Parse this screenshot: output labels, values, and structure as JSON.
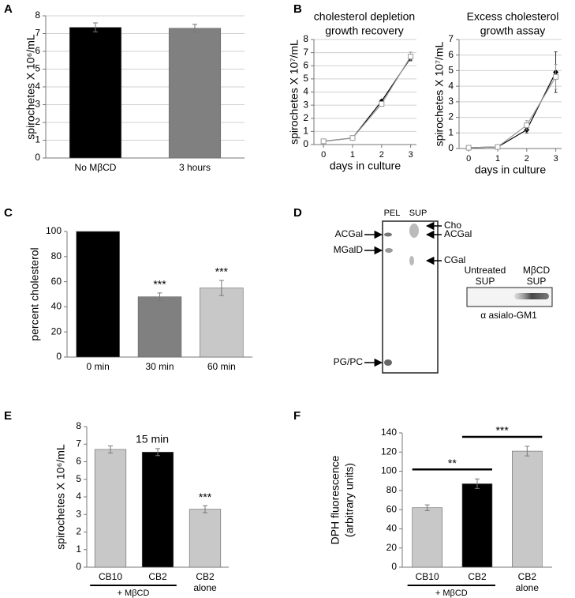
{
  "panel_labels": [
    "A",
    "B",
    "C",
    "D",
    "E",
    "F"
  ],
  "chart_data": [
    {
      "type": "bar",
      "ylabel": "spirochetes X 10⁶/mL",
      "categories": [
        "No MβCD",
        "3 hours"
      ],
      "values": [
        7.35,
        7.3
      ],
      "errors": [
        0.25,
        0.22
      ],
      "colors": [
        "#000000",
        "#808080"
      ],
      "ylim": [
        0,
        8
      ],
      "yticks": [
        0,
        1,
        2,
        3,
        4,
        5,
        6,
        7,
        8
      ],
      "grid": true
    },
    {
      "type": "line",
      "title": [
        "cholesterol depletion",
        "growth recovery"
      ],
      "ylabel": "spirochetes X 10⁷/mL",
      "xlabel": "days in culture",
      "x": [
        0,
        1,
        2,
        3
      ],
      "xlim": [
        -0.33,
        3.2
      ],
      "xticks": [
        0,
        1,
        2,
        3
      ],
      "ylim": [
        0,
        8
      ],
      "yticks": [
        0,
        1,
        2,
        3,
        4,
        5,
        6,
        7,
        8
      ],
      "grid": true,
      "series": [
        {
          "color": "#000000",
          "marker": "diamond",
          "values": [
            0.25,
            0.5,
            3.3,
            6.6
          ],
          "errors": [
            0.05,
            0.05,
            0.1,
            0.2
          ]
        },
        {
          "color": "#999999",
          "marker": "square",
          "values": [
            0.25,
            0.5,
            3.1,
            6.7
          ],
          "errors": [
            0.05,
            0.05,
            0.15,
            0.35
          ]
        }
      ]
    },
    {
      "type": "line",
      "title": [
        "Excess cholesterol",
        "growth assay"
      ],
      "ylabel": "spirochetes X 10⁷/mL",
      "xlabel": "days in culture",
      "x": [
        0,
        1,
        2,
        3
      ],
      "xlim": [
        -0.33,
        3.2
      ],
      "xticks": [
        0,
        1,
        2,
        3
      ],
      "ylim": [
        0,
        7
      ],
      "yticks": [
        0,
        1,
        2,
        3,
        4,
        5,
        6,
        7
      ],
      "grid": true,
      "series": [
        {
          "color": "#000000",
          "marker": "diamond",
          "values": [
            0.05,
            0.1,
            1.2,
            4.9
          ],
          "errors": [
            0.1,
            0.1,
            0.2,
            1.3
          ]
        },
        {
          "color": "#999999",
          "marker": "square",
          "values": [
            0.05,
            0.1,
            1.5,
            4.6
          ],
          "errors": [
            0.15,
            0.1,
            0.3,
            0.8
          ]
        }
      ]
    },
    {
      "type": "bar",
      "ylabel": "percent cholesterol",
      "categories": [
        "0 min",
        "30 min",
        "60 min"
      ],
      "values": [
        100,
        48,
        55
      ],
      "errors": [
        0,
        3,
        6
      ],
      "significance": [
        null,
        "***",
        "***"
      ],
      "colors": [
        "#000000",
        "#808080",
        "#c8c8c8"
      ],
      "ylim": [
        0,
        100
      ],
      "yticks": [
        0,
        20,
        40,
        60,
        80,
        100
      ],
      "grid": false
    },
    {
      "type": "bar",
      "title": "15 min",
      "ylabel": "spirochetes X 10⁶/mL",
      "categories": [
        "CB10",
        "CB2",
        "CB2"
      ],
      "category_notes": [
        null,
        null,
        "alone"
      ],
      "group_label": "+ MβCD",
      "values": [
        6.7,
        6.55,
        3.3
      ],
      "errors": [
        0.2,
        0.2,
        0.2
      ],
      "significance": [
        null,
        null,
        "***"
      ],
      "colors": [
        "#c8c8c8",
        "#000000",
        "#c8c8c8"
      ],
      "ylim": [
        0,
        8
      ],
      "yticks": [
        0,
        1,
        2,
        3,
        4,
        5,
        6,
        7,
        8
      ],
      "grid": false
    },
    {
      "type": "bar",
      "ylabel": [
        "DPH fluorescence",
        "(arbitrary units)"
      ],
      "categories": [
        "CB10",
        "CB2",
        "CB2"
      ],
      "category_notes": [
        null,
        null,
        "alone"
      ],
      "group_label": "+ MβCD",
      "values": [
        62,
        87,
        121
      ],
      "errors": [
        3,
        5,
        5
      ],
      "brackets": [
        {
          "between": [
            0,
            1
          ],
          "label": "**"
        },
        {
          "between": [
            1,
            2
          ],
          "label": "***"
        }
      ],
      "colors": [
        "#c8c8c8",
        "#000000",
        "#c8c8c8"
      ],
      "ylim": [
        0,
        140
      ],
      "yticks": [
        0,
        20,
        40,
        60,
        80,
        100,
        120,
        140
      ],
      "grid": false
    }
  ],
  "gel": {
    "lanes": [
      "PEL",
      "SUP"
    ],
    "left_labels": [
      "ACGal",
      "MGalD",
      "PG/PC"
    ],
    "right_labels": [
      "Cho",
      "ACGal",
      "CGal"
    ]
  },
  "blot": {
    "lanes": [
      [
        "Untreated",
        "SUP"
      ],
      [
        "MβCD",
        "SUP"
      ]
    ],
    "caption": "α asialo-GM1"
  }
}
